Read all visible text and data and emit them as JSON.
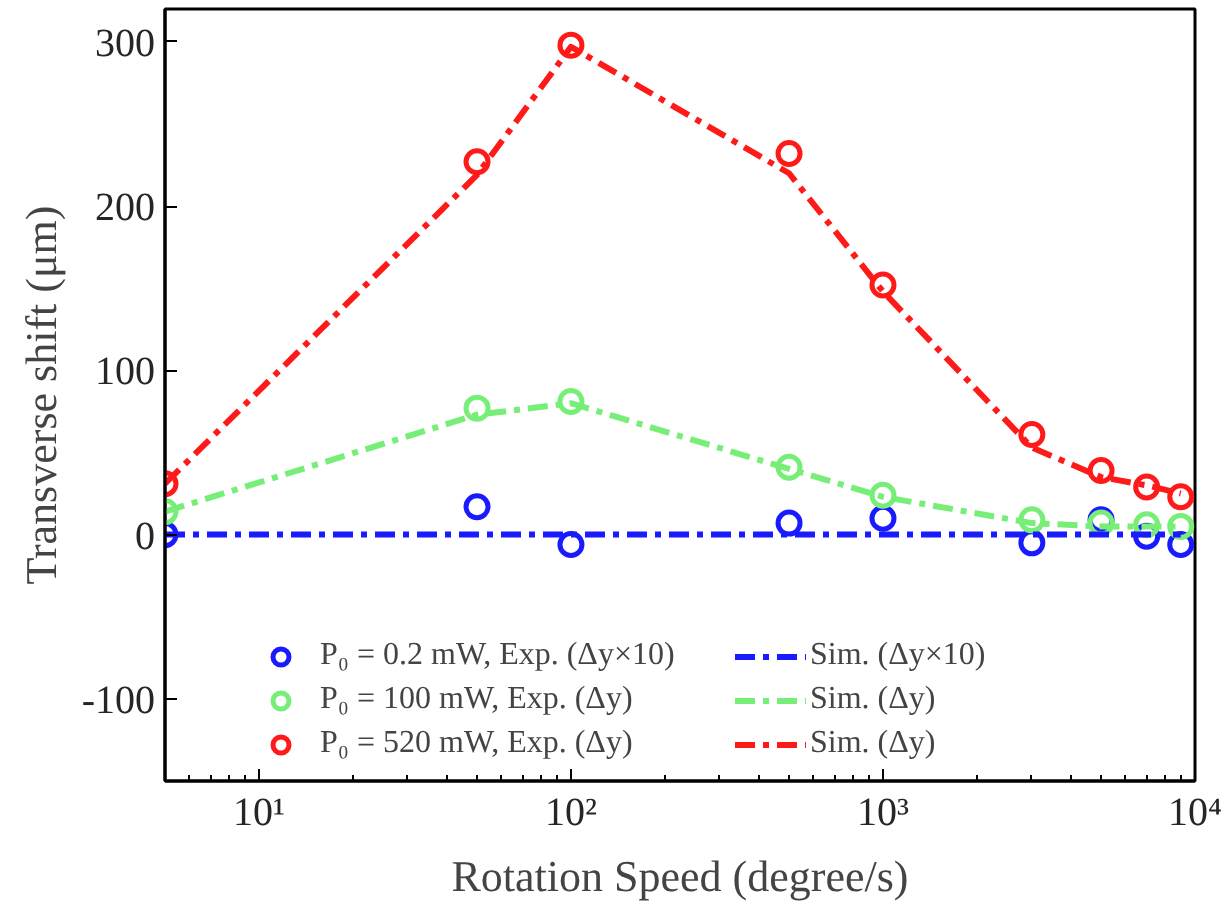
{
  "chart_data": {
    "type": "line",
    "xlabel": "Rotation Speed (degree/s)",
    "ylabel": "Transverse shift (μm)",
    "log": "x",
    "xlim": [
      5,
      10000
    ],
    "ylim": [
      -150,
      320
    ],
    "xticks": [
      {
        "value": 10,
        "label": "10¹"
      },
      {
        "value": 100,
        "label": "10²"
      },
      {
        "value": 1000,
        "label": "10³"
      },
      {
        "value": 10000,
        "label": "10⁴"
      }
    ],
    "yticks": [
      -100,
      0,
      100,
      200,
      300
    ],
    "x": [
      5,
      50,
      100,
      500,
      1000,
      3000,
      5000,
      7000,
      9000
    ],
    "legend": "bottom",
    "grid": false,
    "series": [
      {
        "name": "P₀ = 0.2 mW, Exp. (Δy×10)",
        "type": "scatter",
        "marker": "circle",
        "color": "#1a1aff",
        "values": [
          0,
          17,
          -6,
          7,
          10,
          -5,
          9,
          -1,
          -6
        ]
      },
      {
        "name": "P₀ = 100 mW, Exp. (Δy)",
        "type": "scatter",
        "marker": "circle",
        "color": "#77ee77",
        "values": [
          14,
          77,
          81,
          41,
          24,
          9,
          7,
          6,
          5
        ]
      },
      {
        "name": "P₀ = 520 mW, Exp. (Δy)",
        "type": "scatter",
        "marker": "circle",
        "color": "#ff1a1a",
        "values": [
          31,
          227,
          298,
          232,
          152,
          61,
          39,
          29,
          23
        ]
      },
      {
        "name": "Sim. (Δy×10)",
        "line_style": "dashed",
        "color": "#1a1aff",
        "values": [
          0,
          0,
          0,
          0,
          0,
          0,
          0,
          0,
          0
        ]
      },
      {
        "name": "Sim. (Δy)",
        "line_style": "dashed",
        "color": "#77ee77",
        "values": [
          14,
          73,
          80,
          40,
          23,
          7,
          5,
          5,
          5
        ]
      },
      {
        "name": "Sim. (Δy)",
        "line_style": "dashed",
        "color": "#ff1a1a",
        "values": [
          31,
          219,
          297,
          220,
          148,
          53,
          35,
          30,
          25
        ]
      }
    ]
  }
}
